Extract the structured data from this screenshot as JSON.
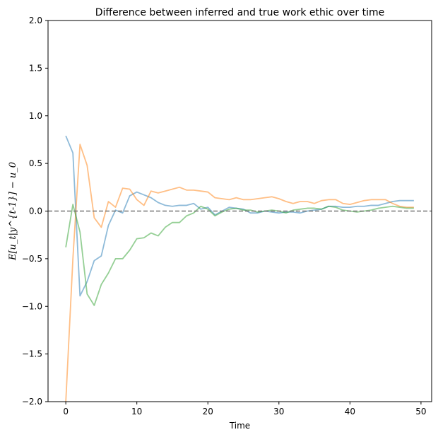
{
  "chart_data": {
    "type": "line",
    "title": "Difference between inferred and true work ethic over time",
    "xlabel": "Time",
    "ylabel": "E[u_t|y^{t-1}] − u_0",
    "xlim": [
      -2.5,
      51.5
    ],
    "ylim": [
      -2.0,
      2.0
    ],
    "xticks": [
      0,
      10,
      20,
      30,
      40,
      50
    ],
    "yticks": [
      -2.0,
      -1.5,
      -1.0,
      -0.5,
      0.0,
      0.5,
      1.0,
      1.5,
      2.0
    ],
    "xtick_labels": [
      "0",
      "10",
      "20",
      "30",
      "40",
      "50"
    ],
    "ytick_labels": [
      "−2.0",
      "−1.5",
      "−1.0",
      "−0.5",
      "0.0",
      "0.5",
      "1.0",
      "1.5",
      "2.0"
    ],
    "reference_line": {
      "y": 0,
      "style": "dashed",
      "color": "#777777"
    },
    "grid": false,
    "legend": "none",
    "series": [
      {
        "color": "#1f77b4",
        "x": [
          0,
          1,
          2,
          3,
          4,
          5,
          6,
          7,
          8,
          9,
          10,
          11,
          12,
          13,
          14,
          15,
          16,
          17,
          18,
          19,
          20,
          21,
          22,
          23,
          24,
          25,
          26,
          27,
          28,
          29,
          30,
          31,
          32,
          33,
          34,
          35,
          36,
          37,
          38,
          39,
          40,
          41,
          42,
          43,
          44,
          45,
          46,
          47,
          48,
          49
        ],
        "values": [
          0.79,
          0.61,
          -0.89,
          -0.74,
          -0.52,
          -0.47,
          -0.15,
          0.01,
          -0.02,
          0.16,
          0.2,
          0.17,
          0.14,
          0.09,
          0.06,
          0.05,
          0.06,
          0.06,
          0.08,
          0.02,
          0.04,
          -0.04,
          0.0,
          0.04,
          0.03,
          0.02,
          -0.02,
          -0.02,
          0.0,
          -0.01,
          -0.02,
          -0.01,
          -0.01,
          -0.02,
          0.0,
          0.01,
          0.02,
          0.05,
          0.05,
          0.04,
          0.04,
          0.05,
          0.05,
          0.06,
          0.06,
          0.08,
          0.1,
          0.11,
          0.11,
          0.11
        ]
      },
      {
        "color": "#ff7f0e",
        "x": [
          0,
          1,
          2,
          3,
          4,
          5,
          6,
          7,
          8,
          9,
          10,
          11,
          12,
          13,
          14,
          15,
          16,
          17,
          18,
          19,
          20,
          21,
          22,
          23,
          24,
          25,
          26,
          27,
          28,
          29,
          30,
          31,
          32,
          33,
          34,
          35,
          36,
          37,
          38,
          39,
          40,
          41,
          42,
          43,
          44,
          45,
          46,
          47,
          48,
          49
        ],
        "values": [
          -2.0,
          -0.5,
          0.7,
          0.48,
          -0.07,
          -0.17,
          0.1,
          0.04,
          0.24,
          0.23,
          0.12,
          0.06,
          0.21,
          0.19,
          0.21,
          0.23,
          0.25,
          0.22,
          0.22,
          0.21,
          0.2,
          0.14,
          0.13,
          0.12,
          0.14,
          0.12,
          0.12,
          0.13,
          0.14,
          0.15,
          0.13,
          0.1,
          0.08,
          0.1,
          0.1,
          0.08,
          0.11,
          0.12,
          0.12,
          0.08,
          0.07,
          0.09,
          0.11,
          0.12,
          0.12,
          0.12,
          0.08,
          0.05,
          0.04,
          0.04
        ]
      },
      {
        "color": "#2ca02c",
        "x": [
          0,
          1,
          2,
          3,
          4,
          5,
          6,
          7,
          8,
          9,
          10,
          11,
          12,
          13,
          14,
          15,
          16,
          17,
          18,
          19,
          20,
          21,
          22,
          23,
          24,
          25,
          26,
          27,
          28,
          29,
          30,
          31,
          32,
          33,
          34,
          35,
          36,
          37,
          38,
          39,
          40,
          41,
          42,
          43,
          44,
          45,
          46,
          47,
          48,
          49
        ],
        "values": [
          -0.38,
          0.07,
          -0.22,
          -0.87,
          -0.99,
          -0.77,
          -0.65,
          -0.5,
          -0.5,
          -0.41,
          -0.29,
          -0.28,
          -0.23,
          -0.26,
          -0.17,
          -0.12,
          -0.12,
          -0.05,
          -0.02,
          0.05,
          0.02,
          -0.05,
          -0.01,
          0.02,
          0.03,
          0.01,
          0.01,
          -0.01,
          0.0,
          0.01,
          0.0,
          -0.02,
          0.01,
          0.02,
          0.03,
          0.03,
          0.02,
          0.05,
          0.04,
          0.01,
          0.0,
          -0.01,
          0.0,
          0.01,
          0.03,
          0.04,
          0.05,
          0.04,
          0.03,
          0.03
        ]
      }
    ]
  }
}
